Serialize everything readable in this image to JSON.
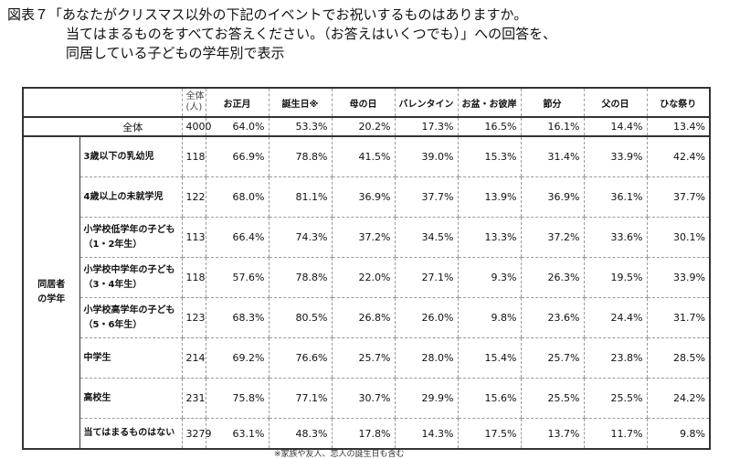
{
  "title": {
    "line1": "図表７「あなたがクリスマス以外の下記のイベントでお祝いするものはありますか。",
    "line2": "当てはまるものをすべてお答えください。（お答えはいくつでも）」への回答を、",
    "line3": "同居している子どもの学年別で表示"
  },
  "table": {
    "headers": {
      "n_line1": "全体",
      "n_line2": "(人)",
      "events": [
        "お正月",
        "誕生日※",
        "母の日",
        "バレンタイン",
        "お盆・お彼岸",
        "節分",
        "父の日",
        "ひな祭り"
      ]
    },
    "total": {
      "label": "全体",
      "n": "4000",
      "values": [
        "64.0%",
        "53.3%",
        "20.2%",
        "17.3%",
        "16.5%",
        "16.1%",
        "14.4%",
        "13.4%"
      ]
    },
    "group_label_line1": "同居者",
    "group_label_line2": "の学年",
    "rows": [
      {
        "label": "3歳以下の乳幼児",
        "n": "118",
        "values": [
          "66.9%",
          "78.8%",
          "41.5%",
          "39.0%",
          "15.3%",
          "31.4%",
          "33.9%",
          "42.4%"
        ]
      },
      {
        "label": "4歳以上の未就学児",
        "n": "122",
        "values": [
          "68.0%",
          "81.1%",
          "36.9%",
          "37.7%",
          "13.9%",
          "36.9%",
          "36.1%",
          "37.7%"
        ]
      },
      {
        "label": "小学校低学年の子ども（1・2年生）",
        "n": "113",
        "values": [
          "66.4%",
          "74.3%",
          "37.2%",
          "34.5%",
          "13.3%",
          "37.2%",
          "33.6%",
          "30.1%"
        ]
      },
      {
        "label": "小学校中学年の子ども（3・4年生）",
        "n": "118",
        "values": [
          "57.6%",
          "78.8%",
          "22.0%",
          "27.1%",
          "9.3%",
          "26.3%",
          "19.5%",
          "33.9%"
        ]
      },
      {
        "label": "小学校高学年の子ども（5・6年生）",
        "n": "123",
        "values": [
          "68.3%",
          "80.5%",
          "26.8%",
          "26.0%",
          "9.8%",
          "23.6%",
          "24.4%",
          "31.7%"
        ]
      },
      {
        "label": "中学生",
        "n": "214",
        "values": [
          "69.2%",
          "76.6%",
          "25.7%",
          "28.0%",
          "15.4%",
          "25.7%",
          "23.8%",
          "28.5%"
        ]
      },
      {
        "label": "高校生",
        "n": "231",
        "values": [
          "75.8%",
          "77.1%",
          "30.7%",
          "29.9%",
          "15.6%",
          "25.5%",
          "25.5%",
          "24.2%"
        ]
      },
      {
        "label": "当てはまるものはない",
        "n": "3279",
        "values": [
          "63.1%",
          "48.3%",
          "17.8%",
          "14.3%",
          "17.5%",
          "13.7%",
          "11.7%",
          "9.8%"
        ]
      }
    ]
  },
  "footnote": "※家族や友人、恋人の誕生日も含む"
}
